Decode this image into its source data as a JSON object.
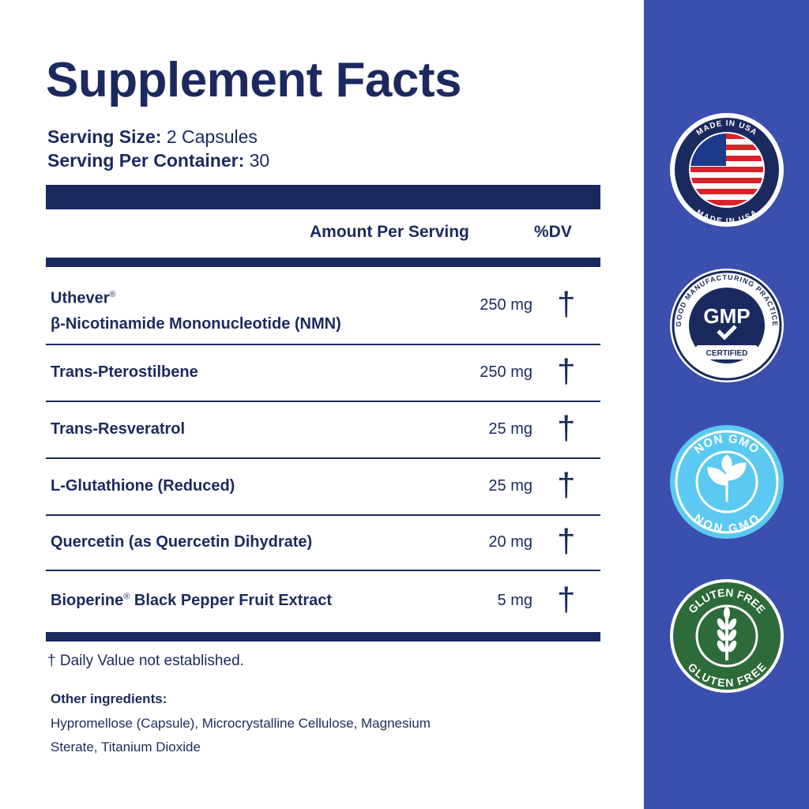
{
  "header": {
    "title": "Supplement Facts"
  },
  "serving": [
    {
      "label": "Serving Size:",
      "value": "2 Capsules"
    },
    {
      "label": "Serving Per Container:",
      "value": "30"
    }
  ],
  "table": {
    "columns": [
      "Amount Per Serving",
      "%DV"
    ],
    "rows": [
      {
        "name": "Uthever",
        "mark": "®",
        "name2": "β-Nicotinamide Mononucleotide (NMN)",
        "amount": "250 mg",
        "dv": "†"
      },
      {
        "name": "Trans-Pterostilbene",
        "amount": "250 mg",
        "dv": "†"
      },
      {
        "name": "Trans-Resveratrol",
        "amount": "25 mg",
        "dv": "†"
      },
      {
        "name": "L-Glutathione (Reduced)",
        "amount": "25 mg",
        "dv": "†"
      },
      {
        "name": "Quercetin (as Quercetin Dihydrate)",
        "amount": "20 mg",
        "dv": "†"
      },
      {
        "name": "Bioperine",
        "mark": "®",
        "name2": " Black Pepper Fruit Extract",
        "amount": "5 mg",
        "dv": "†"
      }
    ]
  },
  "footnote": "† Daily Value not established.",
  "other_ingredients": {
    "label": "Other ingredients:",
    "lines": [
      "Hypromellose (Capsule), Microcrystalline Cellulose, Magnesium",
      "Sterate, Titanium Dioxide"
    ]
  },
  "badges": {
    "usa": "MADE IN USA",
    "gmp_ring": "GOOD MANUFACTURING PRACTICE",
    "gmp": "GMP",
    "gmp_bottom": "CERTIFIED",
    "non_gmo": "NON GMO",
    "gluten": "GLUTEN FREE"
  }
}
